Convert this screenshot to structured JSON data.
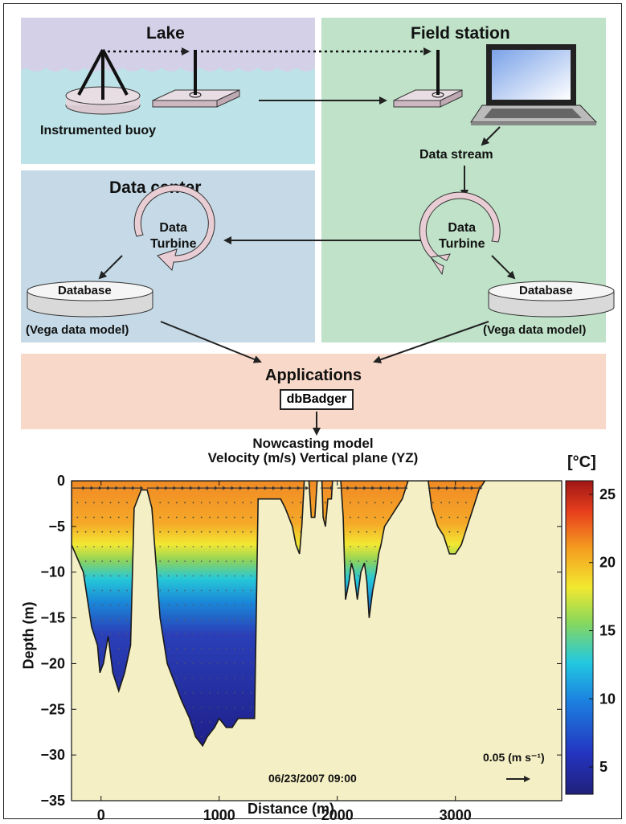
{
  "panels": {
    "lake": {
      "title": "Lake",
      "buoy_label": "Instrumented buoy",
      "color": "#bde3e8",
      "sky": "#d3d0e8"
    },
    "field": {
      "title": "Field station",
      "data_stream": "Data stream",
      "color": "#bfe2c8"
    },
    "datacenter": {
      "title": "Data center",
      "color": "#c5d9e6"
    },
    "applications": {
      "title": "Applications",
      "dbbadger": "dbBadger",
      "color": "#f8d8c8"
    }
  },
  "turbine": {
    "label_line1": "Data",
    "label_line2": "Turbine"
  },
  "database": {
    "label": "Database",
    "model": "(Vega data model)"
  },
  "chart_data": {
    "type": "heatmap",
    "title_line1": "Nowcasting model",
    "title_line2": "Velocity (m/s) Vertical plane (YZ)",
    "xlabel": "Distance (m)",
    "ylabel": "Depth (m)",
    "xlim": [
      -250,
      3900
    ],
    "ylim": [
      -35,
      0
    ],
    "xticks": [
      0,
      1000,
      2000,
      3000
    ],
    "yticks": [
      0,
      -5,
      -10,
      -15,
      -20,
      -25,
      -30,
      -35
    ],
    "timestamp": "06/23/2007 09:00",
    "colorbar_unit": "[°C]",
    "colorbar_ticks": [
      5,
      10,
      15,
      20,
      25
    ],
    "colorbar_range": [
      3,
      26
    ],
    "reference_vector": "0.05 (m s⁻¹)",
    "background_color": "#f4efc4",
    "bathymetry": [
      [
        -250,
        -7
      ],
      [
        -150,
        -10
      ],
      [
        -80,
        -16
      ],
      [
        -30,
        -18
      ],
      [
        -10,
        -21
      ],
      [
        20,
        -20
      ],
      [
        60,
        -17
      ],
      [
        100,
        -21
      ],
      [
        150,
        -23
      ],
      [
        200,
        -21
      ],
      [
        250,
        -18
      ],
      [
        280,
        -3
      ],
      [
        340,
        -1
      ],
      [
        390,
        -1
      ],
      [
        430,
        -3
      ],
      [
        500,
        -15
      ],
      [
        560,
        -20
      ],
      [
        620,
        -22
      ],
      [
        680,
        -24
      ],
      [
        750,
        -26
      ],
      [
        800,
        -28
      ],
      [
        860,
        -29
      ],
      [
        900,
        -28
      ],
      [
        960,
        -27
      ],
      [
        1000,
        -26
      ],
      [
        1060,
        -27
      ],
      [
        1110,
        -27
      ],
      [
        1160,
        -26
      ],
      [
        1200,
        -26
      ],
      [
        1280,
        -26
      ],
      [
        1300,
        -26
      ],
      [
        1330,
        -2
      ],
      [
        1520,
        -2
      ],
      [
        1560,
        -3
      ],
      [
        1620,
        -5
      ],
      [
        1650,
        -7
      ],
      [
        1680,
        -8
      ],
      [
        1700,
        -5
      ],
      [
        1720,
        0
      ],
      [
        1760,
        0
      ],
      [
        1780,
        -4
      ],
      [
        1810,
        -4
      ],
      [
        1830,
        0
      ],
      [
        1870,
        0
      ],
      [
        1880,
        -4
      ],
      [
        1900,
        -5
      ],
      [
        1920,
        -2
      ],
      [
        1950,
        -2
      ],
      [
        1960,
        0
      ],
      [
        2030,
        0
      ],
      [
        2050,
        -4
      ],
      [
        2070,
        -13
      ],
      [
        2100,
        -11
      ],
      [
        2120,
        -9
      ],
      [
        2140,
        -10
      ],
      [
        2170,
        -13
      ],
      [
        2200,
        -10
      ],
      [
        2230,
        -9
      ],
      [
        2250,
        -11
      ],
      [
        2270,
        -15
      ],
      [
        2300,
        -12
      ],
      [
        2330,
        -10
      ],
      [
        2350,
        -8
      ],
      [
        2370,
        -7
      ],
      [
        2400,
        -5
      ],
      [
        2450,
        -4
      ],
      [
        2500,
        -3
      ],
      [
        2550,
        -2
      ],
      [
        2600,
        0
      ],
      [
        2770,
        0
      ],
      [
        2800,
        -3
      ],
      [
        2850,
        -5
      ],
      [
        2900,
        -6
      ],
      [
        2950,
        -8
      ],
      [
        3000,
        -8
      ],
      [
        3050,
        -7
      ],
      [
        3100,
        -5
      ],
      [
        3150,
        -3
      ],
      [
        3200,
        -1
      ],
      [
        3250,
        0
      ]
    ]
  }
}
